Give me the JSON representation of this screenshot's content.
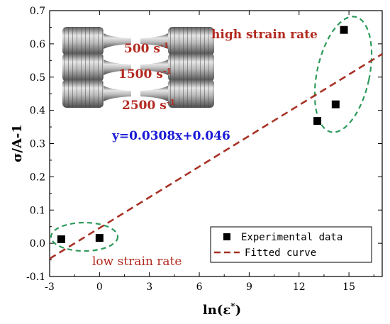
{
  "chart_data": {
    "type": "scatter",
    "title": "",
    "xlabel": "ln(ε*)",
    "xlabel_parts": {
      "base": "ln(ε",
      "sup": "*",
      "close": ")"
    },
    "ylabel": "σ/A-1",
    "xlim": [
      -3,
      17
    ],
    "ylim": [
      -0.1,
      0.7
    ],
    "xticks": [
      -3,
      0,
      3,
      6,
      9,
      12,
      15
    ],
    "yticks": [
      -0.1,
      0.0,
      0.1,
      0.2,
      0.3,
      0.4,
      0.5,
      0.6,
      0.7
    ],
    "ytick_labels": [
      "-0.1",
      "0.0",
      "0.1",
      "0.2",
      "0.3",
      "0.4",
      "0.5",
      "0.6",
      "0.7"
    ],
    "grid": false,
    "legend_position": "bottom-right",
    "series": [
      {
        "name": "Experimental data",
        "kind": "scatter",
        "marker": "square",
        "color": "#000000",
        "points": [
          {
            "x": -2.3,
            "y": 0.012
          },
          {
            "x": 0.0,
            "y": 0.016
          },
          {
            "x": 13.1,
            "y": 0.368
          },
          {
            "x": 14.2,
            "y": 0.418
          },
          {
            "x": 14.7,
            "y": 0.642
          }
        ]
      },
      {
        "name": "Fitted curve",
        "kind": "line",
        "style": "dashed",
        "color": "#a83226",
        "slope": 0.0308,
        "intercept": 0.046
      }
    ],
    "annotations": {
      "equation": "y=0.0308x+0.046",
      "high_label": "high strain rate",
      "low_label": "low strain rate",
      "rate_labels": [
        {
          "value": "500 s",
          "sup": "-1"
        },
        {
          "value": "1500 s",
          "sup": "-1"
        },
        {
          "value": "2500 s",
          "sup": "-1"
        }
      ],
      "ellipse_color": "#2e9a5c"
    }
  }
}
